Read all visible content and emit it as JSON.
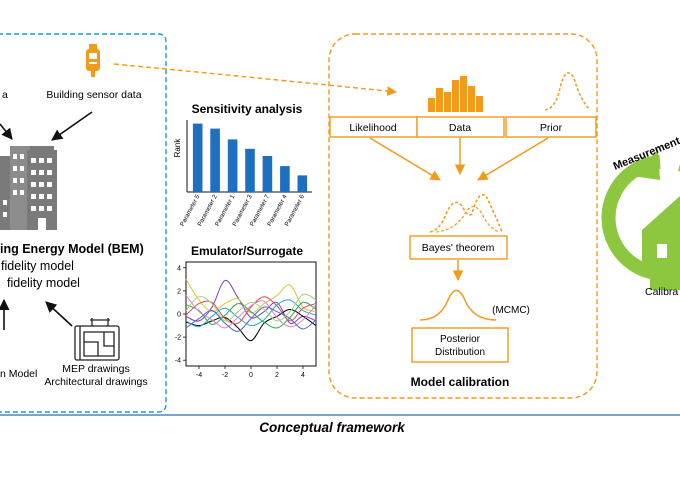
{
  "left_panel": {
    "top_left_fragment": "a",
    "sensor_label": "Building sensor data",
    "bem_title_fragment": "ing Energy Model (BEM)",
    "fidelity_high_fragment": "fidelity model",
    "fidelity_low_fragment": "fidelity model",
    "bottom_left_fragment": "n Model",
    "mep_label": "MEP drawings",
    "arch_label": "Architectural drawings"
  },
  "middle_panel": {
    "sensitivity_title": "Sensitivity analysis",
    "emulator_title": "Emulator/Surrogate"
  },
  "calibration_panel": {
    "likelihood_label": "Likelihood",
    "data_label": "Data",
    "prior_label": "Prior",
    "bayes_label": "Bayes' theorem",
    "mcmc_label": "(MCMC)",
    "posterior_line1": "Posterior",
    "posterior_line2": "Distribution",
    "title": "Model calibration"
  },
  "right_panel": {
    "measurement_label": "Measurement",
    "calibrated_fragment": "Calibra"
  },
  "footer": {
    "caption": "Conceptual framework"
  },
  "colors": {
    "orange": "#f29a1a",
    "blue_dashed": "#1d9ad6",
    "bar_blue": "#1f6fc0",
    "green": "#8dc63f",
    "footer_rule": "#2f6db5"
  },
  "chart_data": [
    {
      "type": "bar",
      "title": "Sensitivity analysis",
      "ylabel": "Rank",
      "categories": [
        "Parameter 5",
        "Parameter 2",
        "Parameter 1",
        "Parameter 3",
        "Parameter 7",
        "Parameter 4",
        "Parameter 6"
      ],
      "values": [
        9.5,
        8.8,
        7.3,
        6.0,
        5.0,
        3.6,
        2.3
      ],
      "ylim": [
        0,
        10
      ]
    },
    {
      "type": "line",
      "title": "Emulator/Surrogate",
      "xlim": [
        -5,
        5
      ],
      "ylim": [
        -4.5,
        4.5
      ],
      "xticks": [
        "-4",
        "-2",
        "0",
        "2",
        "4"
      ],
      "yticks": [
        "4",
        "2",
        "0",
        "-2",
        "-4"
      ],
      "series": [
        {
          "color": "#7b3fbf",
          "values": [
            [
              -5,
              -0.2
            ],
            [
              -4,
              -0.6
            ],
            [
              -3,
              0.6
            ],
            [
              -2,
              2.9
            ],
            [
              -1,
              1.4
            ],
            [
              0,
              -0.3
            ],
            [
              1,
              0.2
            ],
            [
              2,
              1.0
            ],
            [
              3,
              -0.8
            ],
            [
              4,
              -0.2
            ],
            [
              5,
              -0.6
            ]
          ]
        },
        {
          "color": "#000000",
          "values": [
            [
              -5,
              -0.7
            ],
            [
              -4,
              -1.0
            ],
            [
              -3,
              -0.6
            ],
            [
              -2,
              -0.3
            ],
            [
              -1,
              -1.2
            ],
            [
              0,
              -2.3
            ],
            [
              1,
              -0.8
            ],
            [
              2,
              -0.2
            ],
            [
              3,
              0.4
            ],
            [
              4,
              -0.2
            ],
            [
              5,
              -1.0
            ]
          ]
        },
        {
          "color": "#e0c23a",
          "values": [
            [
              -5,
              3.0
            ],
            [
              -4,
              1.2
            ],
            [
              -3,
              0.2
            ],
            [
              -2,
              0.9
            ],
            [
              -1,
              1.3
            ],
            [
              0,
              0.1
            ],
            [
              1,
              0.9
            ],
            [
              2,
              1.6
            ],
            [
              3,
              2.5
            ],
            [
              4,
              0.6
            ],
            [
              5,
              0.2
            ]
          ]
        },
        {
          "color": "#e04a4a",
          "values": [
            [
              -5,
              -0.1
            ],
            [
              -4,
              0.9
            ],
            [
              -3,
              1.0
            ],
            [
              -2,
              -0.4
            ],
            [
              -1,
              -0.8
            ],
            [
              0,
              0.6
            ],
            [
              1,
              1.5
            ],
            [
              2,
              0.7
            ],
            [
              3,
              -0.6
            ],
            [
              4,
              0.5
            ],
            [
              5,
              0.9
            ]
          ]
        },
        {
          "color": "#2fa84f",
          "values": [
            [
              -5,
              0.8
            ],
            [
              -4,
              0.3
            ],
            [
              -3,
              -0.9
            ],
            [
              -2,
              -0.1
            ],
            [
              -1,
              0.9
            ],
            [
              0,
              0.2
            ],
            [
              1,
              -0.7
            ],
            [
              2,
              -1.2
            ],
            [
              3,
              -0.3
            ],
            [
              4,
              1.0
            ],
            [
              5,
              0.4
            ]
          ]
        },
        {
          "color": "#2aa8c8",
          "values": [
            [
              -5,
              -0.6
            ],
            [
              -4,
              -1.1
            ],
            [
              -3,
              -0.2
            ],
            [
              -2,
              0.5
            ],
            [
              -1,
              -0.3
            ],
            [
              0,
              -1.0
            ],
            [
              1,
              -0.5
            ],
            [
              2,
              0.8
            ],
            [
              3,
              1.2
            ],
            [
              4,
              0.3
            ],
            [
              5,
              -0.1
            ]
          ]
        },
        {
          "color": "#e57fc9",
          "values": [
            [
              -5,
              1.6
            ],
            [
              -4,
              0.2
            ],
            [
              -3,
              -0.5
            ],
            [
              -2,
              -1.2
            ],
            [
              -1,
              -0.3
            ],
            [
              0,
              0.7
            ],
            [
              1,
              1.1
            ],
            [
              2,
              -0.3
            ],
            [
              3,
              -1.1
            ],
            [
              4,
              -0.5
            ],
            [
              5,
              0.8
            ]
          ]
        },
        {
          "color": "#4a66d6",
          "values": [
            [
              -5,
              -1.2
            ],
            [
              -4,
              -0.4
            ],
            [
              -3,
              0.3
            ],
            [
              -2,
              -0.8
            ],
            [
              -1,
              -1.5
            ],
            [
              0,
              -0.4
            ],
            [
              1,
              0.6
            ],
            [
              2,
              0.2
            ],
            [
              3,
              -0.4
            ],
            [
              4,
              -1.3
            ],
            [
              5,
              -0.5
            ]
          ]
        },
        {
          "color": "#a3d37a",
          "values": [
            [
              -5,
              0.3
            ],
            [
              -4,
              1.5
            ],
            [
              -3,
              0.9
            ],
            [
              -2,
              -0.6
            ],
            [
              -1,
              0.2
            ],
            [
              0,
              1.0
            ],
            [
              1,
              0.4
            ],
            [
              2,
              -0.6
            ],
            [
              3,
              0.2
            ],
            [
              4,
              1.7
            ],
            [
              5,
              1.2
            ]
          ]
        }
      ]
    }
  ]
}
